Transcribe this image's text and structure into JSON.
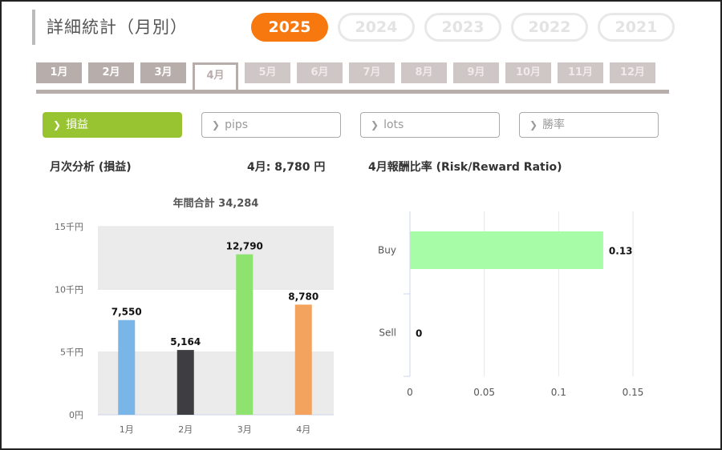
{
  "page": {
    "title": "詳細統計（月別）"
  },
  "years": [
    {
      "label": "2025",
      "active": true
    },
    {
      "label": "2024",
      "active": false
    },
    {
      "label": "2023",
      "active": false
    },
    {
      "label": "2022",
      "active": false
    },
    {
      "label": "2021",
      "active": false
    }
  ],
  "months": [
    {
      "label": "1月",
      "state": "enabled"
    },
    {
      "label": "2月",
      "state": "enabled"
    },
    {
      "label": "3月",
      "state": "enabled"
    },
    {
      "label": "4月",
      "state": "active"
    },
    {
      "label": "5月",
      "state": "disabled"
    },
    {
      "label": "6月",
      "state": "disabled"
    },
    {
      "label": "7月",
      "state": "disabled"
    },
    {
      "label": "8月",
      "state": "disabled"
    },
    {
      "label": "9月",
      "state": "disabled"
    },
    {
      "label": "10月",
      "state": "disabled"
    },
    {
      "label": "11月",
      "state": "disabled"
    },
    {
      "label": "12月",
      "state": "disabled"
    }
  ],
  "filters": [
    {
      "label": "損益",
      "active": true
    },
    {
      "label": "pips",
      "active": false
    },
    {
      "label": "lots",
      "active": false
    },
    {
      "label": "勝率",
      "active": false
    }
  ],
  "colors": {
    "accent_orange": "#f7780f",
    "filter_active": "#99c431",
    "tab_gray": "#b7adab"
  },
  "monthly": {
    "heading": "月次分析 (損益)",
    "summary": "4月:  8,780 円"
  },
  "ratio": {
    "heading": "4月報酬比率 (Risk/Reward Ratio)"
  },
  "chart_data": [
    {
      "type": "bar",
      "title": "年間合計 34,284",
      "categories": [
        "1月",
        "2月",
        "3月",
        "4月"
      ],
      "values": [
        7550,
        5164,
        12790,
        8780
      ],
      "value_labels": [
        "7,550",
        "5,164",
        "12,790",
        "8,780"
      ],
      "colors": [
        "#7ab5e8",
        "#3d3d42",
        "#8ee36f",
        "#f4a35e"
      ],
      "ylim": [
        0,
        15000
      ],
      "yticks": [
        0,
        5000,
        10000,
        15000
      ],
      "ytick_labels": [
        "0円",
        "5千円",
        "10千円",
        "15千円"
      ],
      "grid": "alternating bands"
    },
    {
      "type": "bar",
      "orientation": "horizontal",
      "categories": [
        "Buy",
        "Sell"
      ],
      "values": [
        0.13,
        0
      ],
      "value_labels": [
        "0.13",
        "0"
      ],
      "colors": [
        "#a7fca7",
        "#a7fca7"
      ],
      "xlim": [
        0,
        0.15
      ],
      "xticks": [
        0,
        0.05,
        0.1,
        0.15
      ],
      "xtick_labels": [
        "0",
        "0.05",
        "0.1",
        "0.15"
      ],
      "grid": true
    }
  ]
}
